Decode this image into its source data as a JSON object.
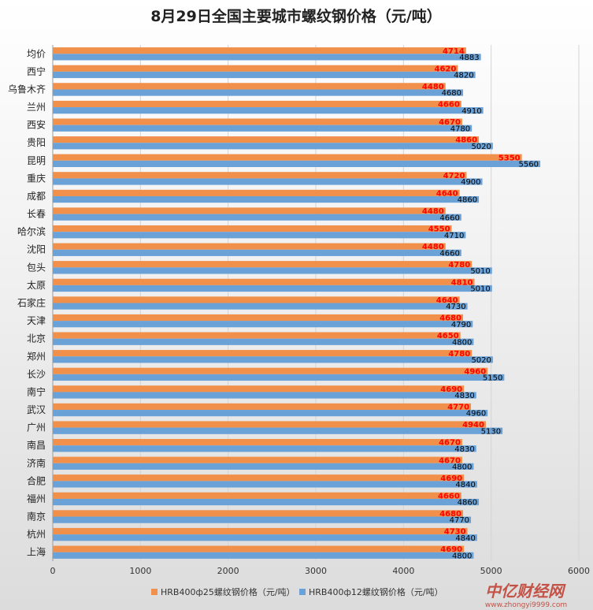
{
  "chart_data": {
    "type": "bar",
    "orientation": "horizontal",
    "title": "8月29日全国主要城市螺纹钢价格（元/吨）",
    "categories": [
      "均价",
      "西宁",
      "乌鲁木齐",
      "兰州",
      "西安",
      "贵阳",
      "昆明",
      "重庆",
      "成都",
      "长春",
      "哈尔滨",
      "沈阳",
      "包头",
      "太原",
      "石家庄",
      "天津",
      "北京",
      "郑州",
      "长沙",
      "南宁",
      "武汉",
      "广州",
      "南昌",
      "济南",
      "合肥",
      "福州",
      "南京",
      "杭州",
      "上海"
    ],
    "series": [
      {
        "name": "HRB400ф25螺纹钢价格（元/吨）",
        "color": "#f0904a",
        "label_color": "#ff0000",
        "values": [
          4714,
          4620,
          4480,
          4660,
          4670,
          4860,
          5350,
          4720,
          4640,
          4480,
          4550,
          4480,
          4780,
          4810,
          4640,
          4680,
          4650,
          4780,
          4960,
          4690,
          4770,
          4940,
          4670,
          4670,
          4690,
          4660,
          4680,
          4730,
          4690
        ]
      },
      {
        "name": "HRB400ф12螺纹钢价格（元/吨）",
        "color": "#6aa2d8",
        "label_color": "#000000",
        "values": [
          4883,
          4820,
          4680,
          4910,
          4780,
          5020,
          5560,
          4900,
          4860,
          4660,
          4710,
          4660,
          5010,
          5010,
          4730,
          4790,
          4800,
          5020,
          5150,
          4830,
          4960,
          5130,
          4830,
          4800,
          4840,
          4860,
          4770,
          4840,
          4800
        ]
      }
    ],
    "xlim": [
      0,
      6000
    ],
    "xticks": [
      0,
      1000,
      2000,
      3000,
      4000,
      5000,
      6000
    ],
    "grid": true,
    "legend_position": "bottom"
  },
  "watermark": {
    "text": "中亿财经网",
    "url": "www.zhongyi9999.com"
  }
}
